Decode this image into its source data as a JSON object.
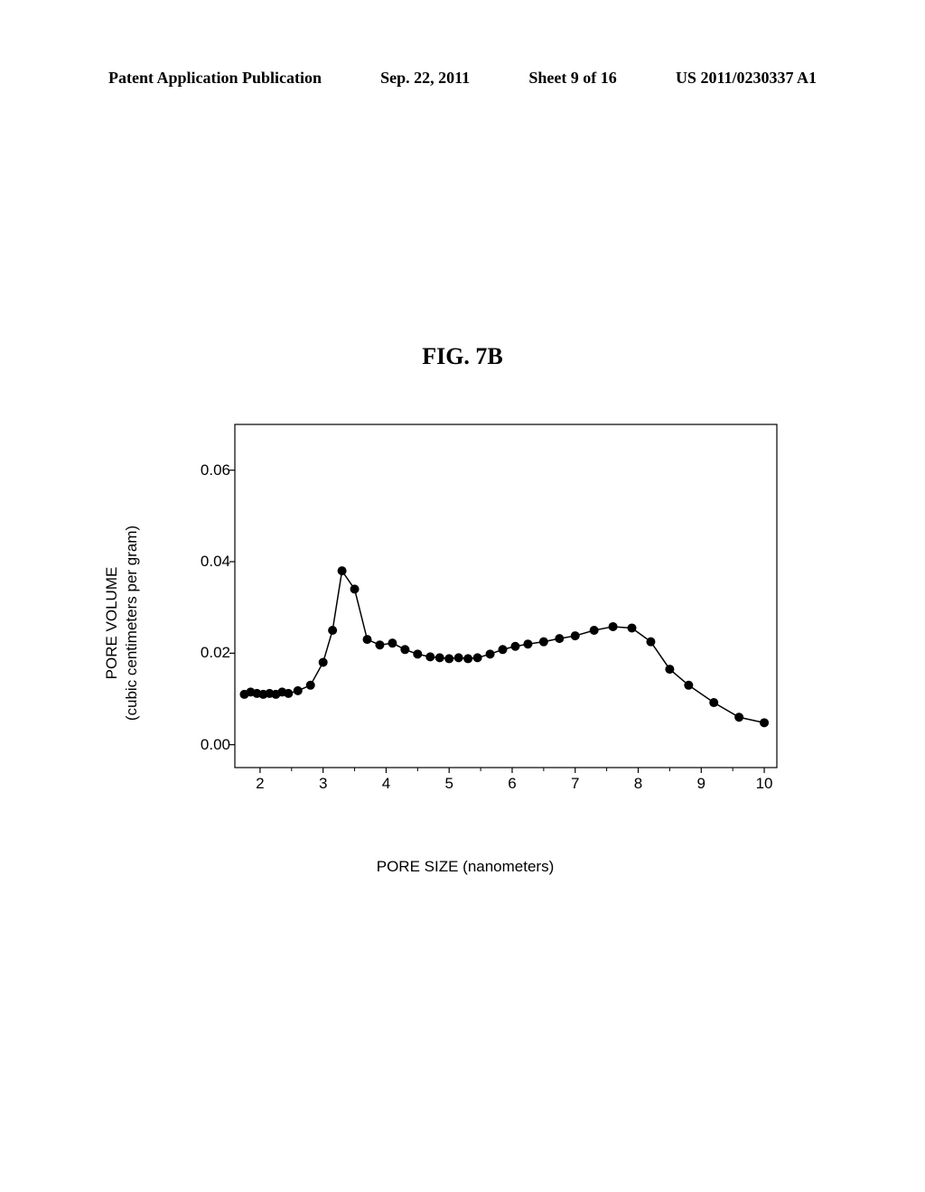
{
  "header": {
    "left": "Patent Application Publication",
    "center": "Sep. 22, 2011",
    "sheet": "Sheet 9 of 16",
    "right": "US 2011/0230337 A1"
  },
  "figure_title": "FIG. 7B",
  "chart": {
    "type": "line-scatter",
    "xlabel": "PORE SIZE (nanometers)",
    "ylabel_line1": "PORE VOLUME",
    "ylabel_line2": "(cubic centimeters per gram)",
    "xlim": [
      1.6,
      10.2
    ],
    "ylim": [
      -0.005,
      0.07
    ],
    "xticks": [
      2,
      3,
      4,
      5,
      6,
      7,
      8,
      9,
      10
    ],
    "yticks": [
      0.0,
      0.02,
      0.04,
      0.06
    ],
    "ytick_labels": [
      "0.00",
      "0.02",
      "0.04",
      "0.06"
    ],
    "xtick_labels": [
      "2",
      "3",
      "4",
      "5",
      "6",
      "7",
      "8",
      "9",
      "10"
    ],
    "data": [
      [
        1.75,
        0.011
      ],
      [
        1.85,
        0.0115
      ],
      [
        1.95,
        0.0112
      ],
      [
        2.05,
        0.011
      ],
      [
        2.15,
        0.0112
      ],
      [
        2.25,
        0.011
      ],
      [
        2.35,
        0.0115
      ],
      [
        2.45,
        0.0112
      ],
      [
        2.6,
        0.0118
      ],
      [
        2.8,
        0.013
      ],
      [
        3.0,
        0.018
      ],
      [
        3.15,
        0.025
      ],
      [
        3.3,
        0.038
      ],
      [
        3.5,
        0.034
      ],
      [
        3.7,
        0.023
      ],
      [
        3.9,
        0.0218
      ],
      [
        4.1,
        0.0222
      ],
      [
        4.3,
        0.0208
      ],
      [
        4.5,
        0.0198
      ],
      [
        4.7,
        0.0192
      ],
      [
        4.85,
        0.019
      ],
      [
        5.0,
        0.0188
      ],
      [
        5.15,
        0.019
      ],
      [
        5.3,
        0.0188
      ],
      [
        5.45,
        0.019
      ],
      [
        5.65,
        0.0198
      ],
      [
        5.85,
        0.0208
      ],
      [
        6.05,
        0.0215
      ],
      [
        6.25,
        0.022
      ],
      [
        6.5,
        0.0225
      ],
      [
        6.75,
        0.0232
      ],
      [
        7.0,
        0.0238
      ],
      [
        7.3,
        0.025
      ],
      [
        7.6,
        0.0258
      ],
      [
        7.9,
        0.0255
      ],
      [
        8.2,
        0.0225
      ],
      [
        8.5,
        0.0165
      ],
      [
        8.8,
        0.013
      ],
      [
        9.2,
        0.0092
      ],
      [
        9.6,
        0.006
      ],
      [
        10.0,
        0.0048
      ]
    ],
    "marker_color": "#000000",
    "line_color": "#000000",
    "marker_size": 5,
    "line_width": 1.5,
    "background_color": "#ffffff",
    "axis_color": "#000000",
    "label_fontsize": 17,
    "tick_fontsize": 17
  }
}
